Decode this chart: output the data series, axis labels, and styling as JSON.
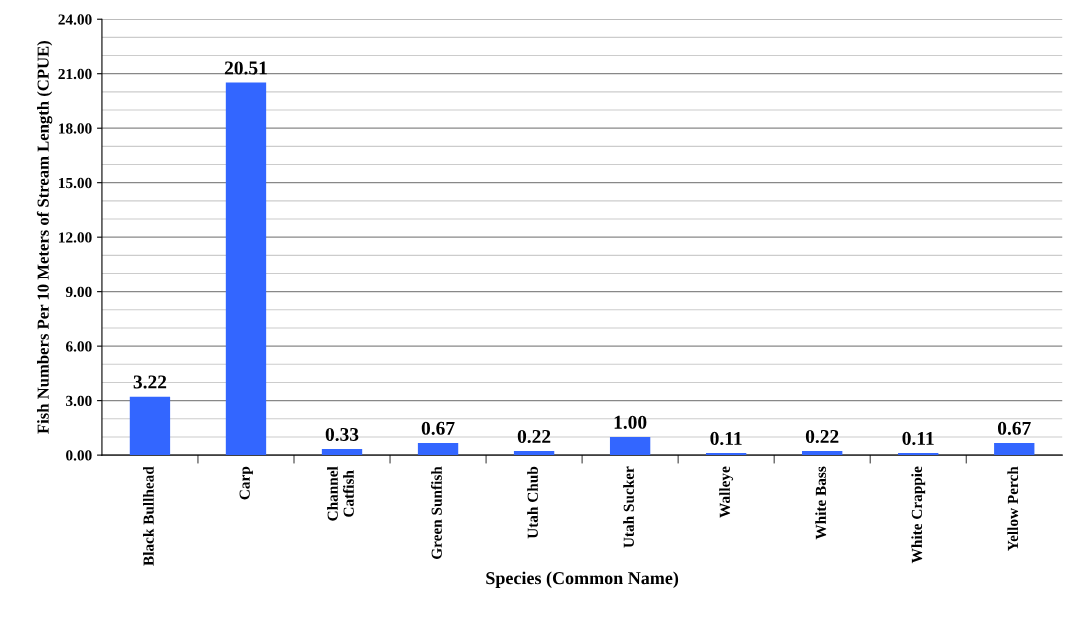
{
  "chart_data": {
    "type": "bar",
    "xlabel": "Species (Common Name)",
    "ylabel": "Fish Numbers Per 10 Meters of Stream Length (CPUE)",
    "categories": [
      "Black Bullhead",
      "Carp",
      "Channel\nCatfish",
      "Green Sunfish",
      "Utah Chub",
      "Utah Sucker",
      "Walleye",
      "White Bass",
      "White Crappie",
      "Yellow Perch"
    ],
    "values": [
      3.22,
      20.51,
      0.33,
      0.67,
      0.22,
      1.0,
      0.11,
      0.22,
      0.11,
      0.67
    ],
    "value_labels": [
      "3.22",
      "20.51",
      "0.33",
      "0.67",
      "0.22",
      "1.00",
      "0.11",
      "0.22",
      "0.11",
      "0.67"
    ],
    "color": "#3366ff",
    "ylim": [
      0,
      24
    ],
    "yticks": [
      {
        "value": 0,
        "label": "0.00"
      },
      {
        "value": 3,
        "label": "3.00"
      },
      {
        "value": 6,
        "label": "6.00"
      },
      {
        "value": 9,
        "label": "9.00"
      },
      {
        "value": 12,
        "label": "12.00"
      },
      {
        "value": 15,
        "label": "15.00"
      },
      {
        "value": 18,
        "label": "18.00"
      },
      {
        "value": 21,
        "label": "21.00"
      },
      {
        "value": 24,
        "label": "24.00"
      }
    ],
    "grid": "y"
  }
}
